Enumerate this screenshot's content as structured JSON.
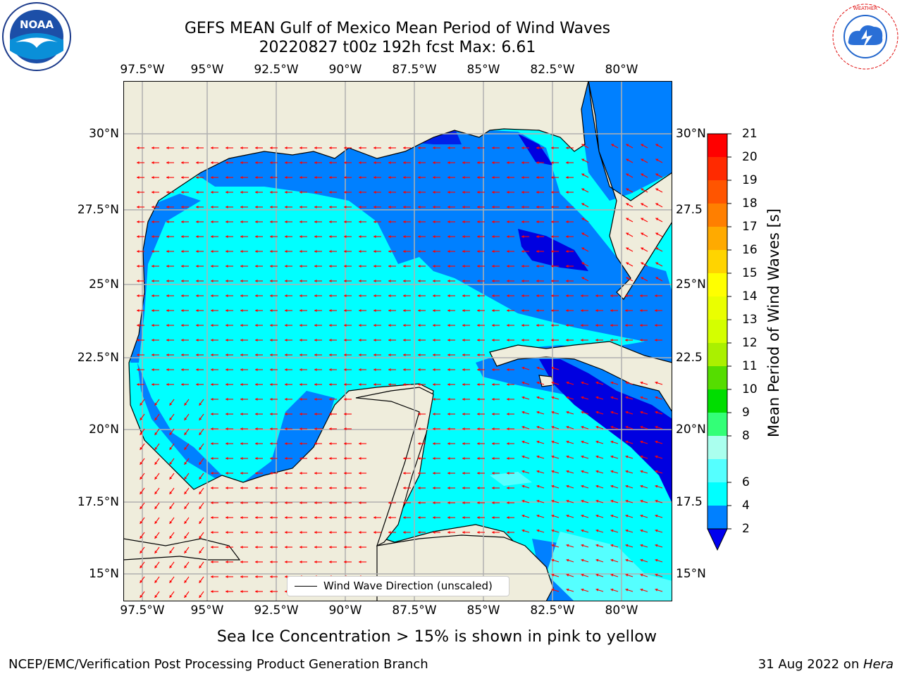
{
  "header": {
    "title_line1": "GEFS MEAN Gulf of Mexico Mean Period of Wind Waves",
    "title_line2": "20220827 t00z 192h fcst   Max: 6.61"
  },
  "logos": {
    "left": "NOAA",
    "right": "NATIONAL WEATHER SERVICE"
  },
  "map": {
    "lon_ticks": [
      "97.5°W",
      "95°W",
      "92.5°W",
      "90°W",
      "87.5°W",
      "85°W",
      "82.5°W",
      "80°W"
    ],
    "lat_ticks_left": [
      "30°N",
      "27.5°N",
      "25°N",
      "22.5°N",
      "20°N",
      "17.5°N",
      "15°N"
    ],
    "lat_ticks_right": [
      "30°N",
      "27.5",
      "25°N",
      "22.5",
      "20°N",
      "17.5",
      "15°N"
    ],
    "legend_text": "Wind Wave Direction (unscaled)",
    "colors": {
      "land": "#efeddc",
      "period_2_4": "#0080ff",
      "period_4_6": "#00ffff",
      "period_6_8": "#40ffff",
      "below_2": "#0000e0",
      "arrow": "#ff0000",
      "grid": "#b0b0b0"
    }
  },
  "colorbar": {
    "label": "Mean Period of Wind Waves [s]",
    "ticks": [
      "21",
      "20",
      "19",
      "18",
      "17",
      "16",
      "15",
      "14",
      "13",
      "12",
      "11",
      "10",
      "9",
      "8",
      "6",
      "4",
      "2"
    ],
    "colors": [
      "#ff0000",
      "#ff2a00",
      "#ff5500",
      "#ff7f00",
      "#ffaa00",
      "#ffd400",
      "#ffff00",
      "#eaff00",
      "#d4ff00",
      "#aaf000",
      "#55dd00",
      "#00dd00",
      "#33ff77",
      "#aaffee",
      "#55ffff",
      "#00ffff",
      "#0080ff",
      "#0000ee"
    ]
  },
  "footer": {
    "note": "Sea Ice Concentration > 15% is shown in pink to yellow",
    "left": "NCEP/EMC/Verification Post Processing Product Generation Branch",
    "right_date": "31 Aug 2022 on ",
    "right_host": "Hera"
  }
}
